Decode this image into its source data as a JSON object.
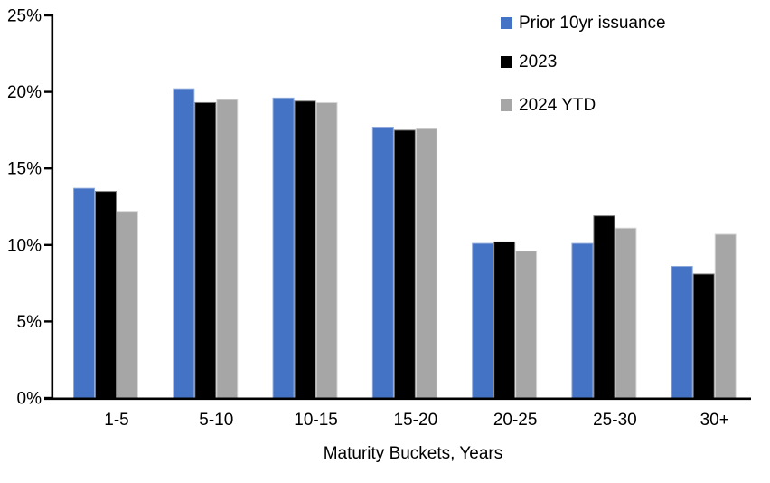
{
  "chart_data": {
    "type": "bar",
    "title": "",
    "xlabel": "Maturity Buckets, Years",
    "ylabel": "",
    "ylim": [
      0,
      25
    ],
    "ytick_values": [
      0,
      5,
      10,
      15,
      20,
      25
    ],
    "ytick_labels": [
      "0%",
      "5%",
      "10%",
      "15%",
      "20%",
      "25%"
    ],
    "grid": false,
    "legend_position": "top-right",
    "background_color": "#ffffff",
    "axis_color": "#000000",
    "categories": [
      "1-5",
      "5-10",
      "10-15",
      "15-20",
      "20-25",
      "25-30",
      "30+"
    ],
    "series": [
      {
        "name": "Prior 10yr issuance",
        "color": "#4472C4",
        "border_color": "#8EA9DB",
        "values": [
          13.7,
          20.2,
          19.6,
          17.7,
          10.1,
          10.1,
          8.6
        ]
      },
      {
        "name": "2023",
        "color": "#000000",
        "border_color": "#7F7F7F",
        "values": [
          13.5,
          19.3,
          19.4,
          17.5,
          10.2,
          11.9,
          8.1
        ]
      },
      {
        "name": "2024 YTD",
        "color": "#A6A6A6",
        "border_color": "#D9D9D9",
        "values": [
          12.2,
          19.5,
          19.3,
          17.6,
          9.6,
          11.1,
          10.7
        ]
      }
    ]
  }
}
